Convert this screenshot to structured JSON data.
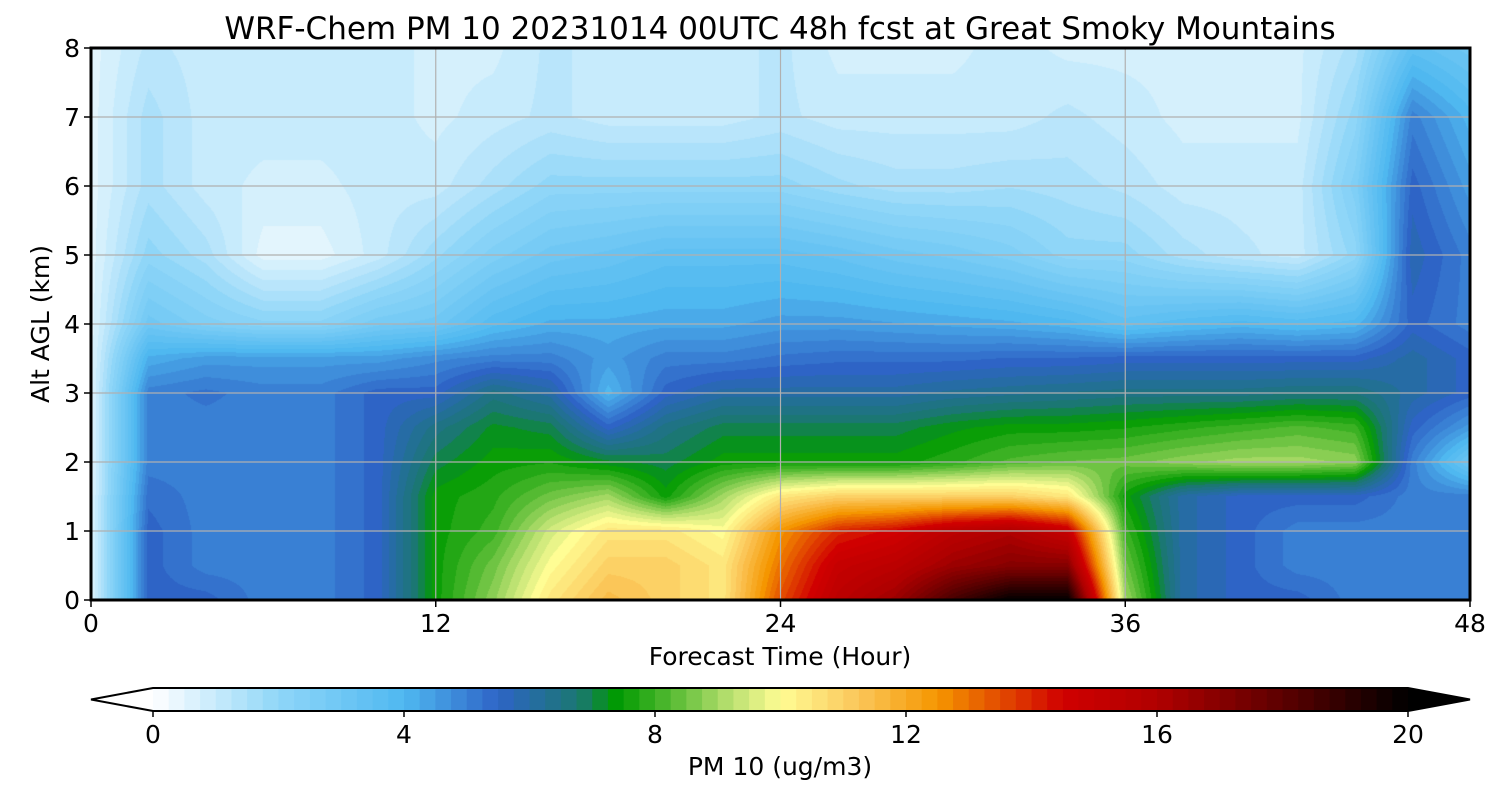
{
  "chart_data": {
    "type": "heatmap",
    "title": "WRF-Chem PM 10  20231014 00UTC 48h fcst at Great Smoky Mountains",
    "xlabel": "Forecast Time (Hour)",
    "ylabel": "Alt AGL (km)",
    "xlim": [
      0,
      48
    ],
    "ylim": [
      0,
      8
    ],
    "xticks": [
      0,
      12,
      24,
      36,
      48
    ],
    "yticks": [
      0,
      1,
      2,
      3,
      4,
      5,
      6,
      7,
      8
    ],
    "grid": true,
    "colorbar": {
      "label": "PM 10  (ug/m3)",
      "range": [
        0,
        20
      ],
      "ticks": [
        0,
        4,
        8,
        12,
        16,
        20
      ],
      "extend": "both",
      "stops": [
        {
          "v": 0,
          "color": "#ffffff"
        },
        {
          "v": 2,
          "color": "#8fd6f8"
        },
        {
          "v": 4,
          "color": "#4fb8f0"
        },
        {
          "v": 5.5,
          "color": "#2e64c6"
        },
        {
          "v": 6.8,
          "color": "#1a7870"
        },
        {
          "v": 7.4,
          "color": "#009a00"
        },
        {
          "v": 8.2,
          "color": "#4fb82f"
        },
        {
          "v": 9.2,
          "color": "#b9e070"
        },
        {
          "v": 10,
          "color": "#fffd94"
        },
        {
          "v": 11.2,
          "color": "#fbc85c"
        },
        {
          "v": 12.5,
          "color": "#f59600"
        },
        {
          "v": 14.5,
          "color": "#d00000"
        },
        {
          "v": 16,
          "color": "#b00000"
        },
        {
          "v": 18,
          "color": "#5c0000"
        },
        {
          "v": 20,
          "color": "#000000"
        }
      ]
    },
    "x": [
      0,
      2,
      4,
      6,
      8,
      10,
      12,
      14,
      16,
      18,
      20,
      22,
      24,
      26,
      28,
      30,
      32,
      34,
      36,
      38,
      40,
      42,
      44,
      46,
      48
    ],
    "y": [
      0,
      0.5,
      1,
      1.5,
      2,
      2.5,
      3,
      3.5,
      4,
      5,
      6,
      7,
      8
    ],
    "values": [
      [
        0.5,
        5.5,
        5.5,
        5,
        5,
        5.5,
        7.5,
        8.8,
        10.5,
        11.5,
        11,
        10.5,
        13.5,
        15.5,
        16.5,
        18.5,
        20,
        20,
        9,
        6,
        5.5,
        5.5,
        5,
        5,
        5
      ],
      [
        0.5,
        5.5,
        5,
        5,
        5,
        5.5,
        7.5,
        8.5,
        10,
        11,
        11,
        10.5,
        13,
        15,
        15.5,
        16.5,
        17,
        17,
        8.5,
        6,
        5.5,
        5,
        5,
        5,
        5
      ],
      [
        0.5,
        5.5,
        5,
        5,
        5,
        5.5,
        7.5,
        8,
        9.5,
        10.5,
        10.5,
        10,
        12.5,
        14,
        14.5,
        15.5,
        16,
        15,
        8,
        6,
        5.5,
        5,
        5,
        5,
        5
      ],
      [
        0.5,
        5.3,
        5,
        5,
        5,
        5.5,
        7.5,
        7.8,
        8.5,
        9,
        7.5,
        9,
        10.5,
        11,
        11,
        11,
        11,
        10.5,
        7.5,
        6,
        5.5,
        5.5,
        5.5,
        5,
        5
      ],
      [
        0.5,
        5,
        5,
        5,
        5,
        5.5,
        7,
        7.5,
        7.6,
        7.2,
        7,
        7.5,
        7.5,
        7.5,
        7.5,
        7.8,
        8.2,
        8.4,
        8.5,
        8.8,
        9,
        9,
        8.8,
        5,
        3
      ],
      [
        0.5,
        5,
        5,
        5,
        5,
        5.5,
        6.5,
        7.2,
        7,
        5.5,
        6.5,
        7,
        7,
        7,
        7,
        7.3,
        7.5,
        7.5,
        7.6,
        7.8,
        8,
        8.2,
        8,
        5.5,
        4.5
      ],
      [
        0.5,
        5,
        5.2,
        5,
        5,
        5.5,
        5.5,
        6.5,
        6,
        4,
        5.5,
        6,
        6,
        6,
        6,
        6.2,
        6.3,
        6.4,
        6.5,
        6.5,
        6.5,
        6.6,
        6.6,
        6,
        5.5
      ],
      [
        0.5,
        4.2,
        4.5,
        4.5,
        4.5,
        4.5,
        4.8,
        5,
        5,
        4.5,
        5,
        5,
        5.2,
        5.3,
        5.3,
        5.3,
        5.4,
        5.4,
        5.5,
        5.5,
        5.5,
        5.5,
        5.5,
        6,
        5.5
      ],
      [
        0.5,
        3,
        2.5,
        2.2,
        2.2,
        2.8,
        3,
        3.8,
        4.2,
        4.2,
        4.3,
        4.3,
        4.5,
        4.5,
        4.4,
        4.3,
        4.2,
        4,
        3.5,
        3.8,
        4,
        3.8,
        4,
        5.5,
        5
      ],
      [
        0.5,
        2,
        1.5,
        0.5,
        0.5,
        1,
        1.8,
        2.5,
        3,
        3.2,
        3.5,
        3.5,
        3.5,
        3.3,
        3,
        2.8,
        2.5,
        2,
        2,
        1.5,
        1.2,
        1,
        2,
        5.8,
        5
      ],
      [
        0.5,
        1.5,
        1,
        0.8,
        0.8,
        1,
        1,
        1.5,
        2,
        2,
        2,
        2,
        2,
        1.7,
        1.5,
        1.5,
        1.6,
        1.5,
        1.3,
        1,
        1,
        1,
        2.5,
        5.5,
        4.5
      ],
      [
        0.5,
        1.5,
        1,
        1,
        1,
        1,
        0.8,
        1,
        1.2,
        1,
        1,
        1,
        1.2,
        1,
        1,
        1,
        1,
        1.2,
        1,
        0.8,
        0.8,
        0.8,
        2,
        5,
        4
      ],
      [
        0.5,
        1.2,
        1,
        1,
        1,
        1,
        0.8,
        0.8,
        1.2,
        1,
        1,
        1,
        1.2,
        0.8,
        0.8,
        0.8,
        1,
        0.8,
        0.8,
        0.8,
        0.8,
        0.8,
        1.5,
        3.5,
        3
      ]
    ]
  }
}
